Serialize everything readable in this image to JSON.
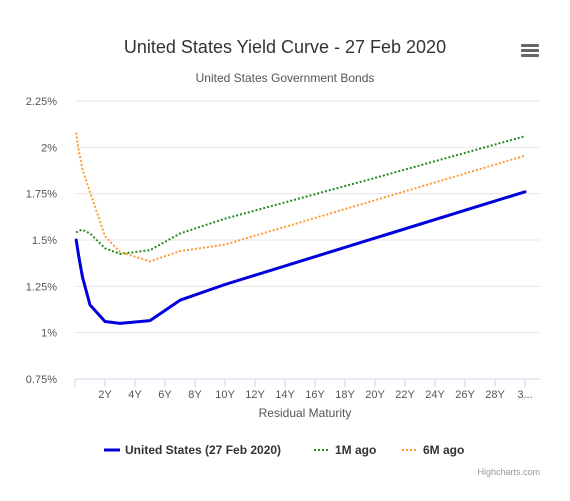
{
  "colors": {
    "current": "#0000dd",
    "one_month": "#228b22",
    "six_month": "#ff9933",
    "grid": "#e6e6e6",
    "axis": "#ccd6eb"
  },
  "menu": {
    "icon": "hamburger-menu-icon"
  },
  "credits": "Highcharts.com",
  "chart_data": {
    "type": "line",
    "title": "United States Yield Curve - 27 Feb 2020",
    "subtitle": "United States Government Bonds",
    "xlabel": "Residual Maturity",
    "ylabel": "",
    "xlim": [
      0,
      31
    ],
    "ylim": [
      0.75,
      2.25
    ],
    "y_ticks": [
      "0.75%",
      "1%",
      "1.25%",
      "1.5%",
      "1.75%",
      "2%",
      "2.25%"
    ],
    "x_ticks": [
      "2Y",
      "4Y",
      "6Y",
      "8Y",
      "10Y",
      "12Y",
      "14Y",
      "16Y",
      "18Y",
      "20Y",
      "22Y",
      "24Y",
      "26Y",
      "28Y",
      "3..."
    ],
    "grid": true,
    "legend_position": "bottom",
    "series": [
      {
        "name": "United States (27 Feb 2020)",
        "style": "solid",
        "points": [
          [
            0.083,
            1.5
          ],
          [
            0.25,
            1.41
          ],
          [
            0.5,
            1.3
          ],
          [
            1,
            1.15
          ],
          [
            2,
            1.06
          ],
          [
            3,
            1.05
          ],
          [
            5,
            1.065
          ],
          [
            7,
            1.175
          ],
          [
            10,
            1.26
          ],
          [
            20,
            1.51
          ],
          [
            30,
            1.76
          ]
        ]
      },
      {
        "name": "1M ago",
        "style": "dotted",
        "points": [
          [
            0.083,
            1.54
          ],
          [
            0.25,
            1.55
          ],
          [
            0.5,
            1.555
          ],
          [
            1,
            1.535
          ],
          [
            2,
            1.455
          ],
          [
            3,
            1.425
          ],
          [
            5,
            1.445
          ],
          [
            7,
            1.535
          ],
          [
            10,
            1.615
          ],
          [
            20,
            1.835
          ],
          [
            30,
            2.06
          ]
        ]
      },
      {
        "name": "6M ago",
        "style": "dotted",
        "points": [
          [
            0.083,
            2.08
          ],
          [
            0.25,
            1.98
          ],
          [
            0.5,
            1.88
          ],
          [
            1,
            1.76
          ],
          [
            2,
            1.52
          ],
          [
            3,
            1.435
          ],
          [
            5,
            1.385
          ],
          [
            7,
            1.44
          ],
          [
            10,
            1.475
          ],
          [
            20,
            1.715
          ],
          [
            30,
            1.955
          ]
        ]
      }
    ]
  }
}
